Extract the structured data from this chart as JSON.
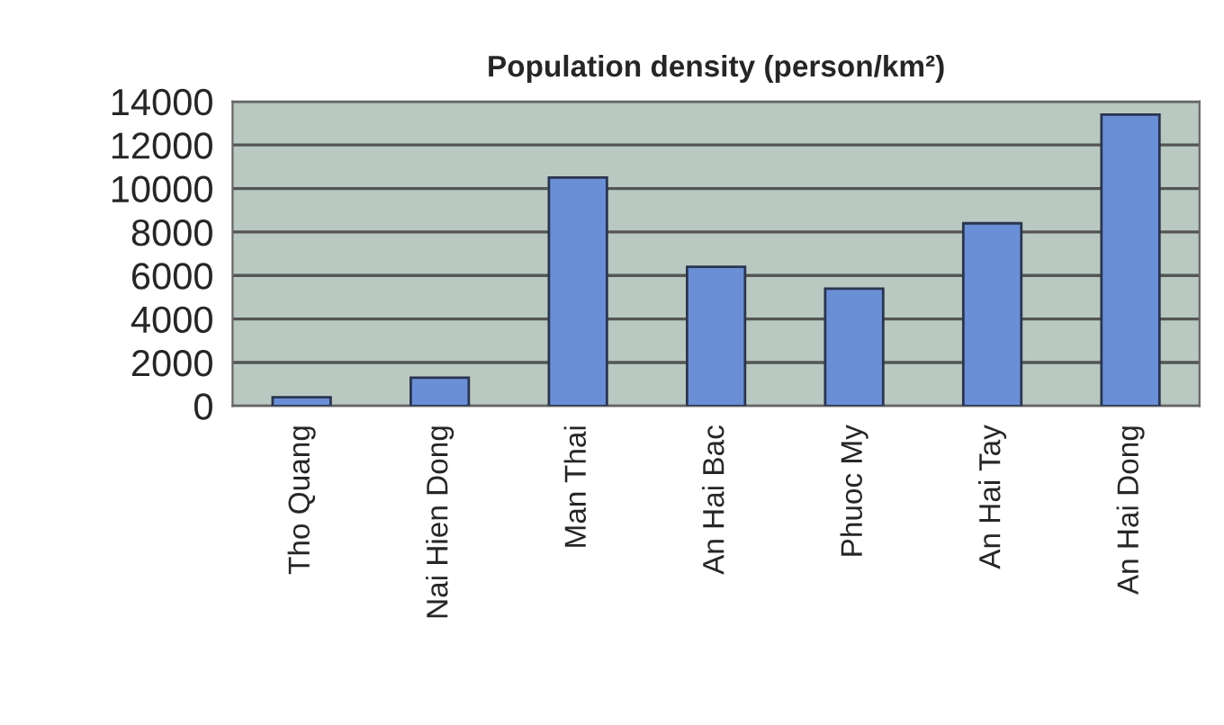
{
  "chart_data": {
    "type": "bar",
    "title": "Population density (person/km²)",
    "categories": [
      "Tho Quang",
      "Nai Hien Dong",
      "Man Thai",
      "An Hai Bac",
      "Phuoc My",
      "An Hai Tay",
      "An Hai Dong"
    ],
    "values": [
      400,
      1300,
      10500,
      6400,
      5400,
      8400,
      13400
    ],
    "color": "#6b8fd6",
    "ylim": [
      0,
      14000
    ],
    "yticks": [
      0,
      2000,
      4000,
      6000,
      8000,
      10000,
      12000,
      14000
    ],
    "grid": "y"
  }
}
